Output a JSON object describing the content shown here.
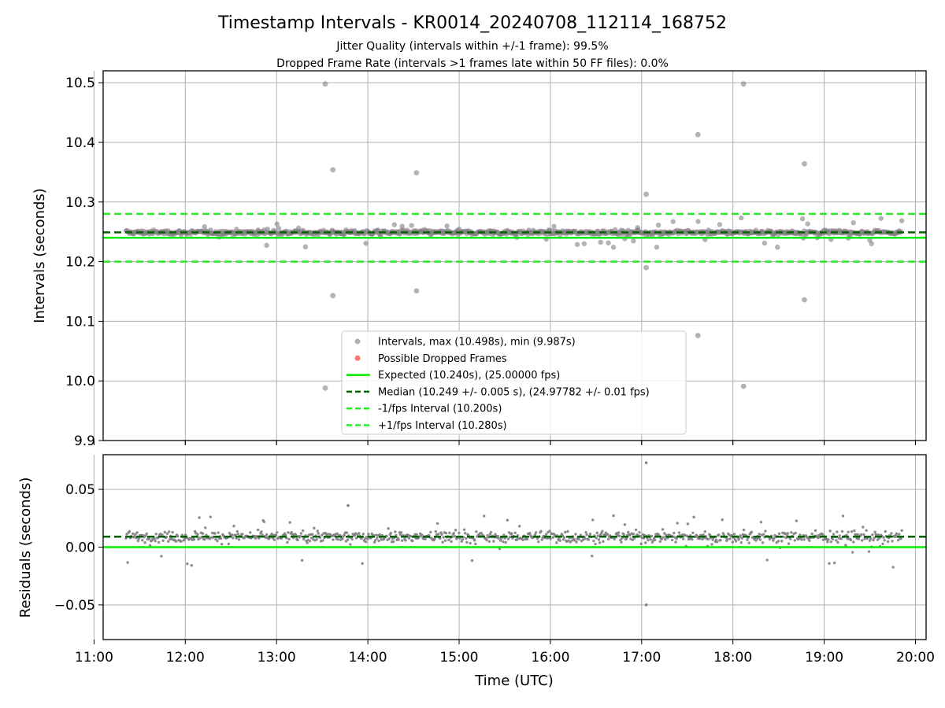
{
  "figure": {
    "title": "Timestamp Intervals - KR0014_20240708_112114_168752",
    "subtitle_lines": [
      "Jitter Quality (intervals within +/-1 frame): 99.5%",
      "Dropped Frame Rate (intervals >1 frames late within 50 FF files): 0.0%"
    ]
  },
  "colors": {
    "points": "#808080",
    "dropped": "#ff0000",
    "expected": "#00ee00",
    "median": "#006400",
    "interval_lines": "#22ee22",
    "grid": "#b0b0b0"
  },
  "chart_data": [
    {
      "type": "scatter",
      "panel": "intervals",
      "ylabel": "Intervals (seconds)",
      "xlim": [
        "11:00",
        "20:00"
      ],
      "ylim": [
        9.9,
        10.52
      ],
      "yticks": [
        "9.9",
        "10.0",
        "10.1",
        "10.2",
        "10.3",
        "10.4",
        "10.5"
      ],
      "ytick_values": [
        9.9,
        10.0,
        10.1,
        10.2,
        10.3,
        10.4,
        10.5
      ],
      "grid": true,
      "legend_position": "lower-center",
      "series": [
        {
          "name": "Intervals, max (10.498s), min (9.987s)",
          "kind": "scatter",
          "x_range": [
            "11:21",
            "19:51"
          ],
          "typical_range": [
            10.24,
            10.26
          ],
          "outliers": [
            {
              "x": "13:32",
              "y": 10.498
            },
            {
              "x": "18:07",
              "y": 10.498
            },
            {
              "x": "17:37",
              "y": 10.413
            },
            {
              "x": "18:47",
              "y": 10.364
            },
            {
              "x": "13:37",
              "y": 10.354
            },
            {
              "x": "14:32",
              "y": 10.349
            },
            {
              "x": "17:03",
              "y": 10.313
            },
            {
              "x": "17:03",
              "y": 10.19
            },
            {
              "x": "13:37",
              "y": 10.143
            },
            {
              "x": "14:32",
              "y": 10.151
            },
            {
              "x": "18:47",
              "y": 10.136
            },
            {
              "x": "17:37",
              "y": 10.076
            },
            {
              "x": "13:32",
              "y": 9.988
            },
            {
              "x": "18:07",
              "y": 9.991
            }
          ]
        },
        {
          "name": "Possible Dropped Frames",
          "kind": "scatter",
          "count": 0
        },
        {
          "name": "Expected (10.240s), (25.00000 fps)",
          "kind": "hline",
          "y": 10.24
        },
        {
          "name": "Median (10.249 +/- 0.005 s), (24.97782 +/- 0.01 fps)",
          "kind": "hline-dashed",
          "y": 10.249
        },
        {
          "name": "-1/fps Interval (10.200s)",
          "kind": "hline-dashed",
          "y": 10.2
        },
        {
          "name": "+1/fps Interval (10.280s)",
          "kind": "hline-dashed",
          "y": 10.28
        }
      ]
    },
    {
      "type": "scatter",
      "panel": "residuals",
      "ylabel": "Residuals (seconds)",
      "xlabel": "Time (UTC)",
      "xlim": [
        "11:00",
        "20:00"
      ],
      "xticks": [
        "11:00",
        "12:00",
        "13:00",
        "14:00",
        "15:00",
        "16:00",
        "17:00",
        "18:00",
        "19:00",
        "20:00"
      ],
      "ylim": [
        -0.08,
        0.08
      ],
      "yticks": [
        "−0.05",
        "0.00",
        "0.05"
      ],
      "ytick_values": [
        -0.05,
        0.0,
        0.05
      ],
      "grid": true,
      "series": [
        {
          "kind": "scatter",
          "x_range": [
            "11:21",
            "19:51"
          ],
          "typical_range": [
            -0.01,
            0.02
          ],
          "outliers": [
            {
              "x": "17:03",
              "y": 0.073
            },
            {
              "x": "17:03",
              "y": -0.05
            },
            {
              "x": "13:47",
              "y": 0.036
            }
          ]
        },
        {
          "kind": "hline",
          "y": 0.0
        },
        {
          "kind": "hline-dashed",
          "y": 0.009
        }
      ]
    }
  ]
}
